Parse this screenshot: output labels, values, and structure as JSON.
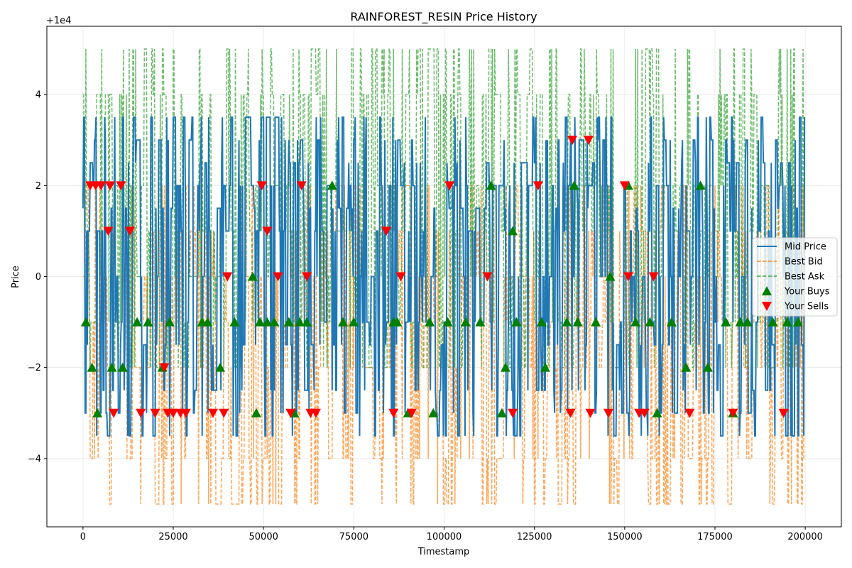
{
  "chart_data": {
    "type": "line",
    "title": "RAINFOREST_RESIN Price History",
    "xlabel": "Timestamp",
    "ylabel": "Price",
    "offset_label": "+1e4",
    "xlim": [
      -10000,
      210000
    ],
    "ylim": [
      -5.5,
      5.5
    ],
    "x_ticks": [
      0,
      25000,
      50000,
      75000,
      100000,
      125000,
      150000,
      175000,
      200000
    ],
    "x_tick_labels": [
      "0",
      "25000",
      "50000",
      "75000",
      "100000",
      "125000",
      "150000",
      "175000",
      "200000"
    ],
    "y_ticks": [
      -4,
      -2,
      0,
      2,
      4
    ],
    "y_tick_labels": [
      "−4",
      "−2",
      "0",
      "2",
      "4"
    ],
    "grid": true,
    "legend_position": "center-right",
    "series": [
      {
        "name": "Mid Price",
        "style": "solid",
        "color": "#1f77b4",
        "x_range": [
          0,
          199900
        ],
        "y_levels": [
          -3.5,
          -3,
          -2.5,
          -1.5,
          -1,
          0,
          1,
          1.5,
          2,
          2.5,
          3,
          3.5
        ]
      },
      {
        "name": "Best Bid",
        "style": "dashed",
        "color": "#ff7f0e",
        "x_range": [
          0,
          199900
        ],
        "y_levels": [
          -5,
          -4,
          -2,
          -1,
          0,
          1,
          2
        ]
      },
      {
        "name": "Best Ask",
        "style": "dashed",
        "color": "#2ca02c",
        "x_range": [
          0,
          199900
        ],
        "y_levels": [
          -2,
          -1,
          0,
          1,
          2,
          4,
          5
        ]
      }
    ],
    "buys": {
      "name": "Your Buys",
      "color": "#008000",
      "marker": "triangle-up",
      "points": [
        [
          800,
          -1
        ],
        [
          2500,
          -2
        ],
        [
          4000,
          -3
        ],
        [
          8000,
          -2
        ],
        [
          11000,
          -2
        ],
        [
          15000,
          -1
        ],
        [
          18000,
          -1
        ],
        [
          22000,
          -2
        ],
        [
          24000,
          -1
        ],
        [
          33000,
          -1
        ],
        [
          34500,
          -1
        ],
        [
          38000,
          -2
        ],
        [
          42000,
          -1
        ],
        [
          47000,
          0
        ],
        [
          48000,
          -3
        ],
        [
          49000,
          -1
        ],
        [
          51000,
          -1
        ],
        [
          53000,
          -1
        ],
        [
          57000,
          -1
        ],
        [
          58500,
          -3
        ],
        [
          60000,
          -1
        ],
        [
          62000,
          -1
        ],
        [
          69000,
          2
        ],
        [
          72000,
          -1
        ],
        [
          75000,
          -1
        ],
        [
          86000,
          -1
        ],
        [
          87000,
          -1
        ],
        [
          90000,
          -3
        ],
        [
          96000,
          -1
        ],
        [
          97000,
          -3
        ],
        [
          101000,
          -1
        ],
        [
          106000,
          -1
        ],
        [
          110000,
          -1
        ],
        [
          113000,
          2
        ],
        [
          116000,
          -3
        ],
        [
          117000,
          -2
        ],
        [
          119000,
          1
        ],
        [
          120000,
          -1
        ],
        [
          127000,
          -1
        ],
        [
          128000,
          -2
        ],
        [
          134000,
          -1
        ],
        [
          136000,
          2
        ],
        [
          137000,
          -1
        ],
        [
          142000,
          -1
        ],
        [
          146000,
          0
        ],
        [
          151000,
          2
        ],
        [
          153000,
          -1
        ],
        [
          157000,
          -1
        ],
        [
          159000,
          -3
        ],
        [
          163000,
          -1
        ],
        [
          167000,
          -2
        ],
        [
          171000,
          2
        ],
        [
          173000,
          -2
        ],
        [
          178000,
          -1
        ],
        [
          180000,
          -3
        ],
        [
          182000,
          -1
        ],
        [
          184000,
          -1
        ],
        [
          191000,
          -1
        ],
        [
          195000,
          -1
        ],
        [
          198000,
          -1
        ]
      ]
    },
    "sells": {
      "name": "Your Sells",
      "color": "#ff0000",
      "marker": "triangle-down",
      "points": [
        [
          2000,
          2
        ],
        [
          3500,
          2
        ],
        [
          5000,
          2
        ],
        [
          7000,
          1
        ],
        [
          7500,
          2
        ],
        [
          8500,
          -3
        ],
        [
          10500,
          2
        ],
        [
          13000,
          1
        ],
        [
          16000,
          -3
        ],
        [
          20000,
          -3
        ],
        [
          22500,
          -2
        ],
        [
          23500,
          -3
        ],
        [
          25000,
          -3
        ],
        [
          27000,
          -3
        ],
        [
          28500,
          -3
        ],
        [
          36000,
          -3
        ],
        [
          39000,
          -3
        ],
        [
          40000,
          0
        ],
        [
          49500,
          2
        ],
        [
          51000,
          1
        ],
        [
          54000,
          0
        ],
        [
          57500,
          -3
        ],
        [
          60500,
          2
        ],
        [
          62000,
          0
        ],
        [
          63000,
          -3
        ],
        [
          64500,
          -3
        ],
        [
          84000,
          1
        ],
        [
          86000,
          -3
        ],
        [
          88000,
          0
        ],
        [
          91000,
          -3
        ],
        [
          101500,
          2
        ],
        [
          112000,
          0
        ],
        [
          119000,
          -3
        ],
        [
          126000,
          2
        ],
        [
          135000,
          -3
        ],
        [
          135500,
          3
        ],
        [
          140000,
          3
        ],
        [
          140500,
          -3
        ],
        [
          145500,
          -3
        ],
        [
          150000,
          2
        ],
        [
          151000,
          0
        ],
        [
          154000,
          -3
        ],
        [
          155500,
          -3
        ],
        [
          158000,
          0
        ],
        [
          168000,
          -3
        ],
        [
          180000,
          -3
        ],
        [
          194000,
          -3
        ]
      ]
    }
  }
}
